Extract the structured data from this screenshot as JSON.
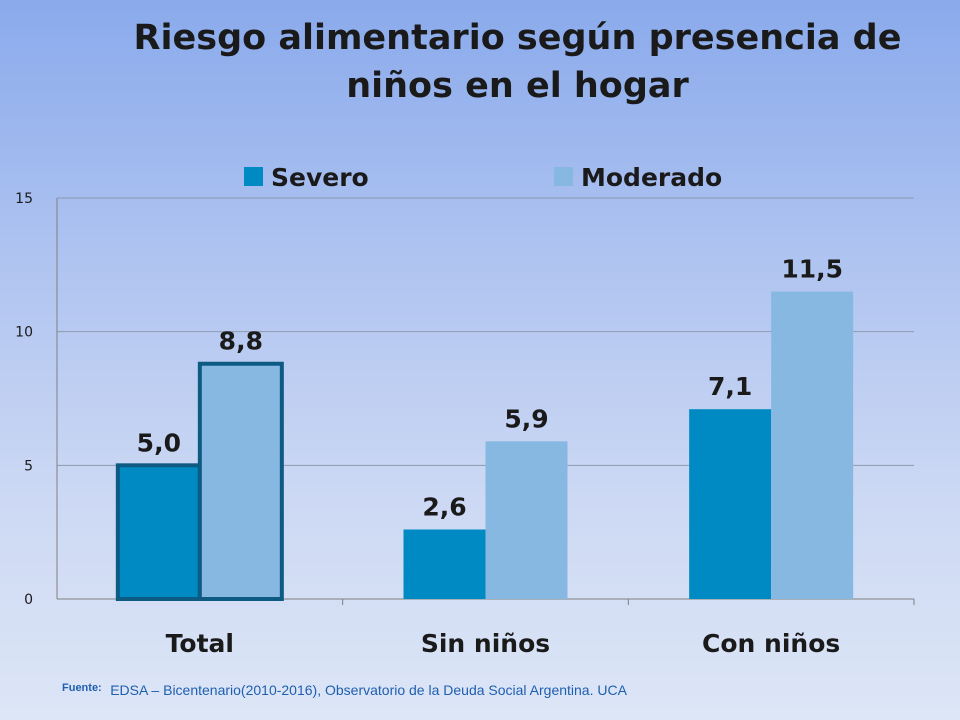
{
  "title_lines": [
    "Riesgo alimentario según presencia de",
    "niños en el hogar"
  ],
  "footer": {
    "label": "Fuente:",
    "text": "EDSA – Bicentenario(2010-2016), Observatorio de la Deuda Social Argentina. UCA"
  },
  "colors": {
    "severo": "#008ac4",
    "moderado": "#87b8e2",
    "highlight_border": "#0d5b82",
    "grid": "#8c9bb0",
    "axis": "#808080"
  },
  "chart_data": {
    "type": "bar",
    "title": "Riesgo alimentario según presencia de niños en el hogar",
    "categories": [
      "Total",
      "Sin niños",
      "Con niños"
    ],
    "series": [
      {
        "name": "Severo",
        "values": [
          5.0,
          2.6,
          7.1
        ],
        "labels": [
          "5,0",
          "2,6",
          "7,1"
        ]
      },
      {
        "name": "Moderado",
        "values": [
          8.8,
          5.9,
          11.5
        ],
        "labels": [
          "8,8",
          "5,9",
          "11,5"
        ]
      }
    ],
    "ylim": [
      0,
      15
    ],
    "yticks": [
      0,
      5,
      10,
      15
    ],
    "grid": true,
    "legend": "top-center",
    "highlighted_category": "Total",
    "xlabel": "",
    "ylabel": ""
  }
}
